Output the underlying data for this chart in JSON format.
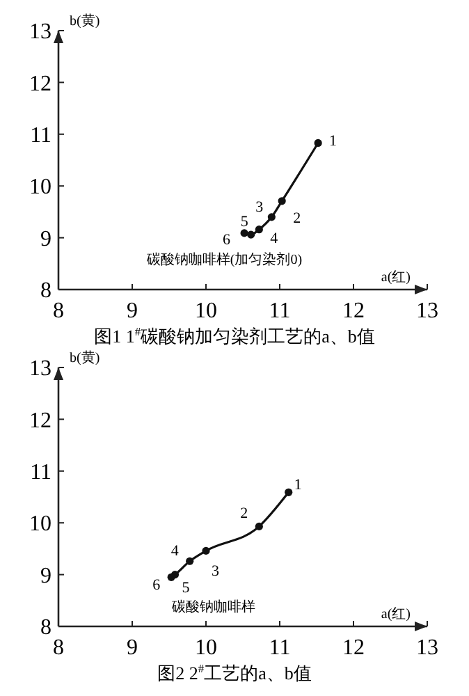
{
  "chart_data": [
    {
      "type": "line",
      "title": "图1 1$^{#}$碳酸钠加匀染剂工艺的a、b值",
      "xlabel": "a(红)",
      "ylabel": "b(黄)",
      "xlim": [
        8,
        13
      ],
      "ylim": [
        8,
        13
      ],
      "xticks": [
        8,
        9,
        10,
        11,
        12,
        13
      ],
      "yticks": [
        8,
        9,
        10,
        11,
        12,
        13
      ],
      "marker": "circle",
      "line_style": "solid",
      "grid": false,
      "series": [
        {
          "color": "#111111",
          "x": [
            11.52,
            11.03,
            10.89,
            10.72,
            10.61,
            10.52
          ],
          "values": [
            10.83,
            9.71,
            9.4,
            9.16,
            9.06,
            9.09
          ]
        }
      ],
      "annotations": [
        "碳酸钠咖啡样(加匀染剂0)",
        {
          "text": "1",
          "x": 11.52,
          "y": 10.83
        },
        {
          "text": "2",
          "x": 11.03,
          "y": 9.71
        },
        {
          "text": "3",
          "x": 10.89,
          "y": 9.4
        },
        {
          "text": "4",
          "x": 10.72,
          "y": 9.16
        },
        {
          "text": "5",
          "x": 10.61,
          "y": 9.06
        },
        {
          "text": "6",
          "x": 10.52,
          "y": 9.09
        }
      ]
    },
    {
      "type": "line",
      "title": "图2 2$^{#}$工艺的a、b值",
      "xlabel": "a(红)",
      "ylabel": "b(黄)",
      "xlim": [
        8,
        13
      ],
      "ylim": [
        8,
        13
      ],
      "xticks": [
        8,
        9,
        10,
        11,
        12,
        13
      ],
      "yticks": [
        8,
        9,
        10,
        11,
        12,
        13
      ],
      "marker": "circle",
      "line_style": "solid",
      "grid": false,
      "series": [
        {
          "color": "#111111",
          "x": [
            11.12,
            10.72,
            10.0,
            9.78,
            9.58,
            9.53
          ],
          "values": [
            10.59,
            9.93,
            9.46,
            9.26,
            9.0,
            8.95
          ]
        }
      ],
      "annotations": [
        "碳酸钠咖啡样",
        {
          "text": "1",
          "x": 11.12,
          "y": 10.59
        },
        {
          "text": "2",
          "x": 10.72,
          "y": 9.93
        },
        {
          "text": "3",
          "x": 10.0,
          "y": 9.46
        },
        {
          "text": "4",
          "x": 9.78,
          "y": 9.26
        },
        {
          "text": "5",
          "x": 9.58,
          "y": 9.0
        },
        {
          "text": "6",
          "x": 9.53,
          "y": 8.95
        }
      ]
    }
  ]
}
